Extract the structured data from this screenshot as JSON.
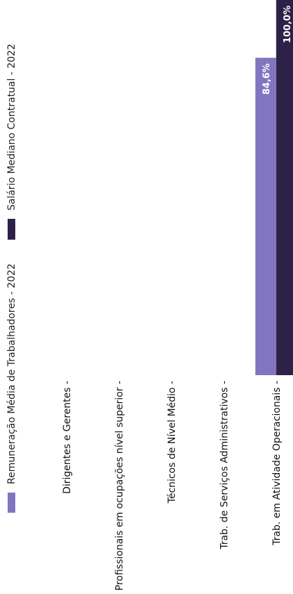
{
  "chart_data": {
    "type": "bar",
    "categories": [
      "Dirigentes e Gerentes",
      "Profissionais em ocupações nível superior",
      "Técnicos de Nível Médio",
      "Trab. de Serviços Administrativos",
      "Trab. em Atividade Operacionais"
    ],
    "series": [
      {
        "name": "Remuneração Média de Trabalhadores - 2022",
        "color": "#8275c0",
        "values": [
          null,
          null,
          null,
          null,
          84.6
        ],
        "labels": [
          "",
          "",
          "",
          "",
          "84,6%"
        ]
      },
      {
        "name": "Salário Mediano Contratual - 2022",
        "color": "#2e2148",
        "values": [
          null,
          null,
          null,
          null,
          100.0
        ],
        "labels": [
          "",
          "",
          "",
          "",
          "100,0%"
        ]
      }
    ],
    "value_max": 100,
    "grid": false,
    "legend_position": "top",
    "orientation": "bars grow upward from category axis, page rotated 90°"
  }
}
